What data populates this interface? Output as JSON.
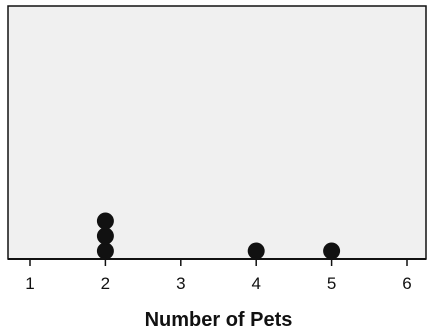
{
  "chart_data": {
    "type": "scatter",
    "subtype": "dot-plot",
    "title": "",
    "xlabel": "Number of Pets",
    "ylabel": "",
    "x_ticks": [
      1,
      2,
      3,
      4,
      5,
      6
    ],
    "x_tick_labels": [
      "1",
      "2",
      "3",
      "4",
      "5",
      "6"
    ],
    "xlim": [
      0.7,
      6.3
    ],
    "grid": false,
    "legend": "none",
    "points": [
      {
        "x": 2,
        "stack": 1
      },
      {
        "x": 2,
        "stack": 2
      },
      {
        "x": 2,
        "stack": 3
      },
      {
        "x": 4,
        "stack": 1
      },
      {
        "x": 5,
        "stack": 1
      }
    ],
    "counts": {
      "1": 0,
      "2": 3,
      "3": 0,
      "4": 1,
      "5": 1,
      "6": 0
    },
    "colors": {
      "plot_background": "#f0f0f0",
      "dot": "#111111",
      "axis": "#111111"
    }
  }
}
